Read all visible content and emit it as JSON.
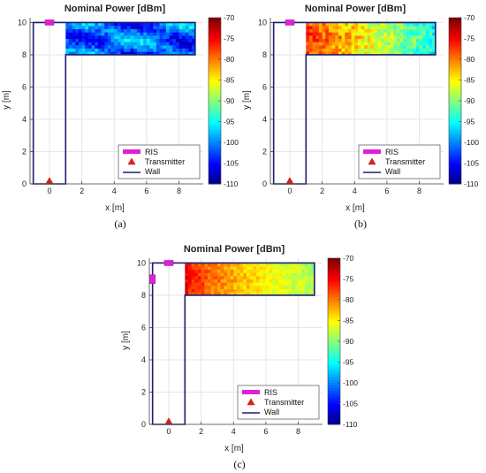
{
  "colors": {
    "wall": "#1c1f6e",
    "ris": "#e020d8",
    "transmitter_fill": "#e0201e",
    "transmitter_edge": "#d02010"
  },
  "chart_data": [
    {
      "type": "heatmap",
      "panel_label": "(a)",
      "title": "Nominal Power [dBm]",
      "xlabel": "x [m]",
      "ylabel": "y [m]",
      "xlim": [
        -1.2,
        9.5
      ],
      "ylim": [
        0,
        10.3
      ],
      "xticks": [
        0,
        2,
        4,
        6,
        8
      ],
      "yticks": [
        0,
        2,
        4,
        6,
        8,
        10
      ],
      "colorbar": {
        "min": -110,
        "max": -70,
        "ticks": [
          -70,
          -75,
          -80,
          -85,
          -90,
          -95,
          -100,
          -105,
          -110
        ],
        "colormap": "jet"
      },
      "heatmap_region": {
        "x": [
          1,
          9
        ],
        "y": [
          8,
          10
        ]
      },
      "heatmap_pattern": "interference diagonal stripes, mostly -95 to -105 dBm",
      "ris_labels": [
        {
          "text": "RIS",
          "x": 0,
          "y": 10
        }
      ],
      "tx_label": {
        "text": "Tx",
        "x": 0,
        "y": 0
      },
      "legend": {
        "placement": "bottom-right",
        "entries": [
          "RIS",
          "Transmitter",
          "Wall"
        ]
      }
    },
    {
      "type": "heatmap",
      "panel_label": "(b)",
      "title": "Nominal Power [dBm]",
      "xlabel": "x [m]",
      "ylabel": "y [m]",
      "xlim": [
        -1.2,
        9.5
      ],
      "ylim": [
        0,
        10.3
      ],
      "xticks": [
        0,
        2,
        4,
        6,
        8
      ],
      "yticks": [
        0,
        2,
        4,
        6,
        8,
        10
      ],
      "colorbar": {
        "min": -110,
        "max": -70,
        "ticks": [
          -70,
          -75,
          -80,
          -85,
          -90,
          -95,
          -100,
          -105,
          -110
        ],
        "colormap": "jet"
      },
      "heatmap_region": {
        "x": [
          1,
          9
        ],
        "y": [
          8,
          10
        ]
      },
      "heatmap_pattern": "strong near x=1 (about -75 dBm) decaying to about -95 dBm at x=9",
      "ris_labels": [
        {
          "text": "RIS",
          "x": 0,
          "y": 10
        }
      ],
      "tx_label": {
        "text": "Tx",
        "x": 0,
        "y": 0
      },
      "legend": {
        "placement": "bottom-right",
        "entries": [
          "RIS",
          "Transmitter",
          "Wall"
        ]
      }
    },
    {
      "type": "heatmap",
      "panel_label": "(c)",
      "title": "Nominal Power [dBm]",
      "xlabel": "x [m]",
      "ylabel": "y [m]",
      "xlim": [
        -1.2,
        9.5
      ],
      "ylim": [
        0,
        10.3
      ],
      "xticks": [
        0,
        2,
        4,
        6,
        8
      ],
      "yticks": [
        0,
        2,
        4,
        6,
        8,
        10
      ],
      "colorbar": {
        "min": -110,
        "max": -70,
        "ticks": [
          -70,
          -75,
          -80,
          -85,
          -90,
          -95,
          -100,
          -105,
          -110
        ],
        "colormap": "jet"
      },
      "heatmap_region": {
        "x": [
          1,
          9
        ],
        "y": [
          8,
          10
        ]
      },
      "heatmap_pattern": "very strong at x=1 (about -72 dBm) decaying to about -90 dBm",
      "ris_labels": [
        {
          "text": "RIS1",
          "x": 0,
          "y": 10
        },
        {
          "text": "RIS2",
          "x": -1,
          "y": 9
        }
      ],
      "tx_label": {
        "text": "Tx",
        "x": 0,
        "y": 0
      },
      "legend": {
        "placement": "bottom-right",
        "entries": [
          "RIS",
          "Transmitter",
          "Wall"
        ]
      }
    }
  ]
}
